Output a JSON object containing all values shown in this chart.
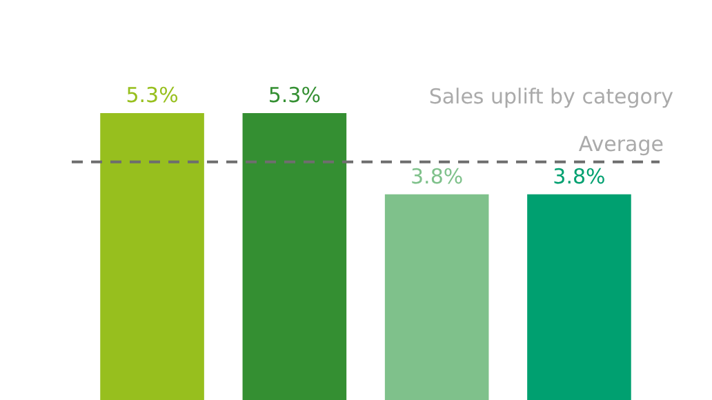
{
  "chart_data": {
    "type": "bar",
    "title": "Sales uplift by category",
    "categories": [
      null,
      null,
      null,
      null
    ],
    "values": [
      5.3,
      5.3,
      3.8,
      3.8
    ],
    "colors": [
      "#97bf1e",
      "#348f32",
      "#7fc18b",
      "#00a070"
    ],
    "value_labels": [
      "5.3%",
      "5.3%",
      "3.8%",
      "3.8%"
    ],
    "ref_lines": [
      {
        "axis": "y",
        "value": 4.4,
        "label": "Average",
        "color": "#6e6e6e",
        "line_style": "dashed"
      }
    ]
  }
}
